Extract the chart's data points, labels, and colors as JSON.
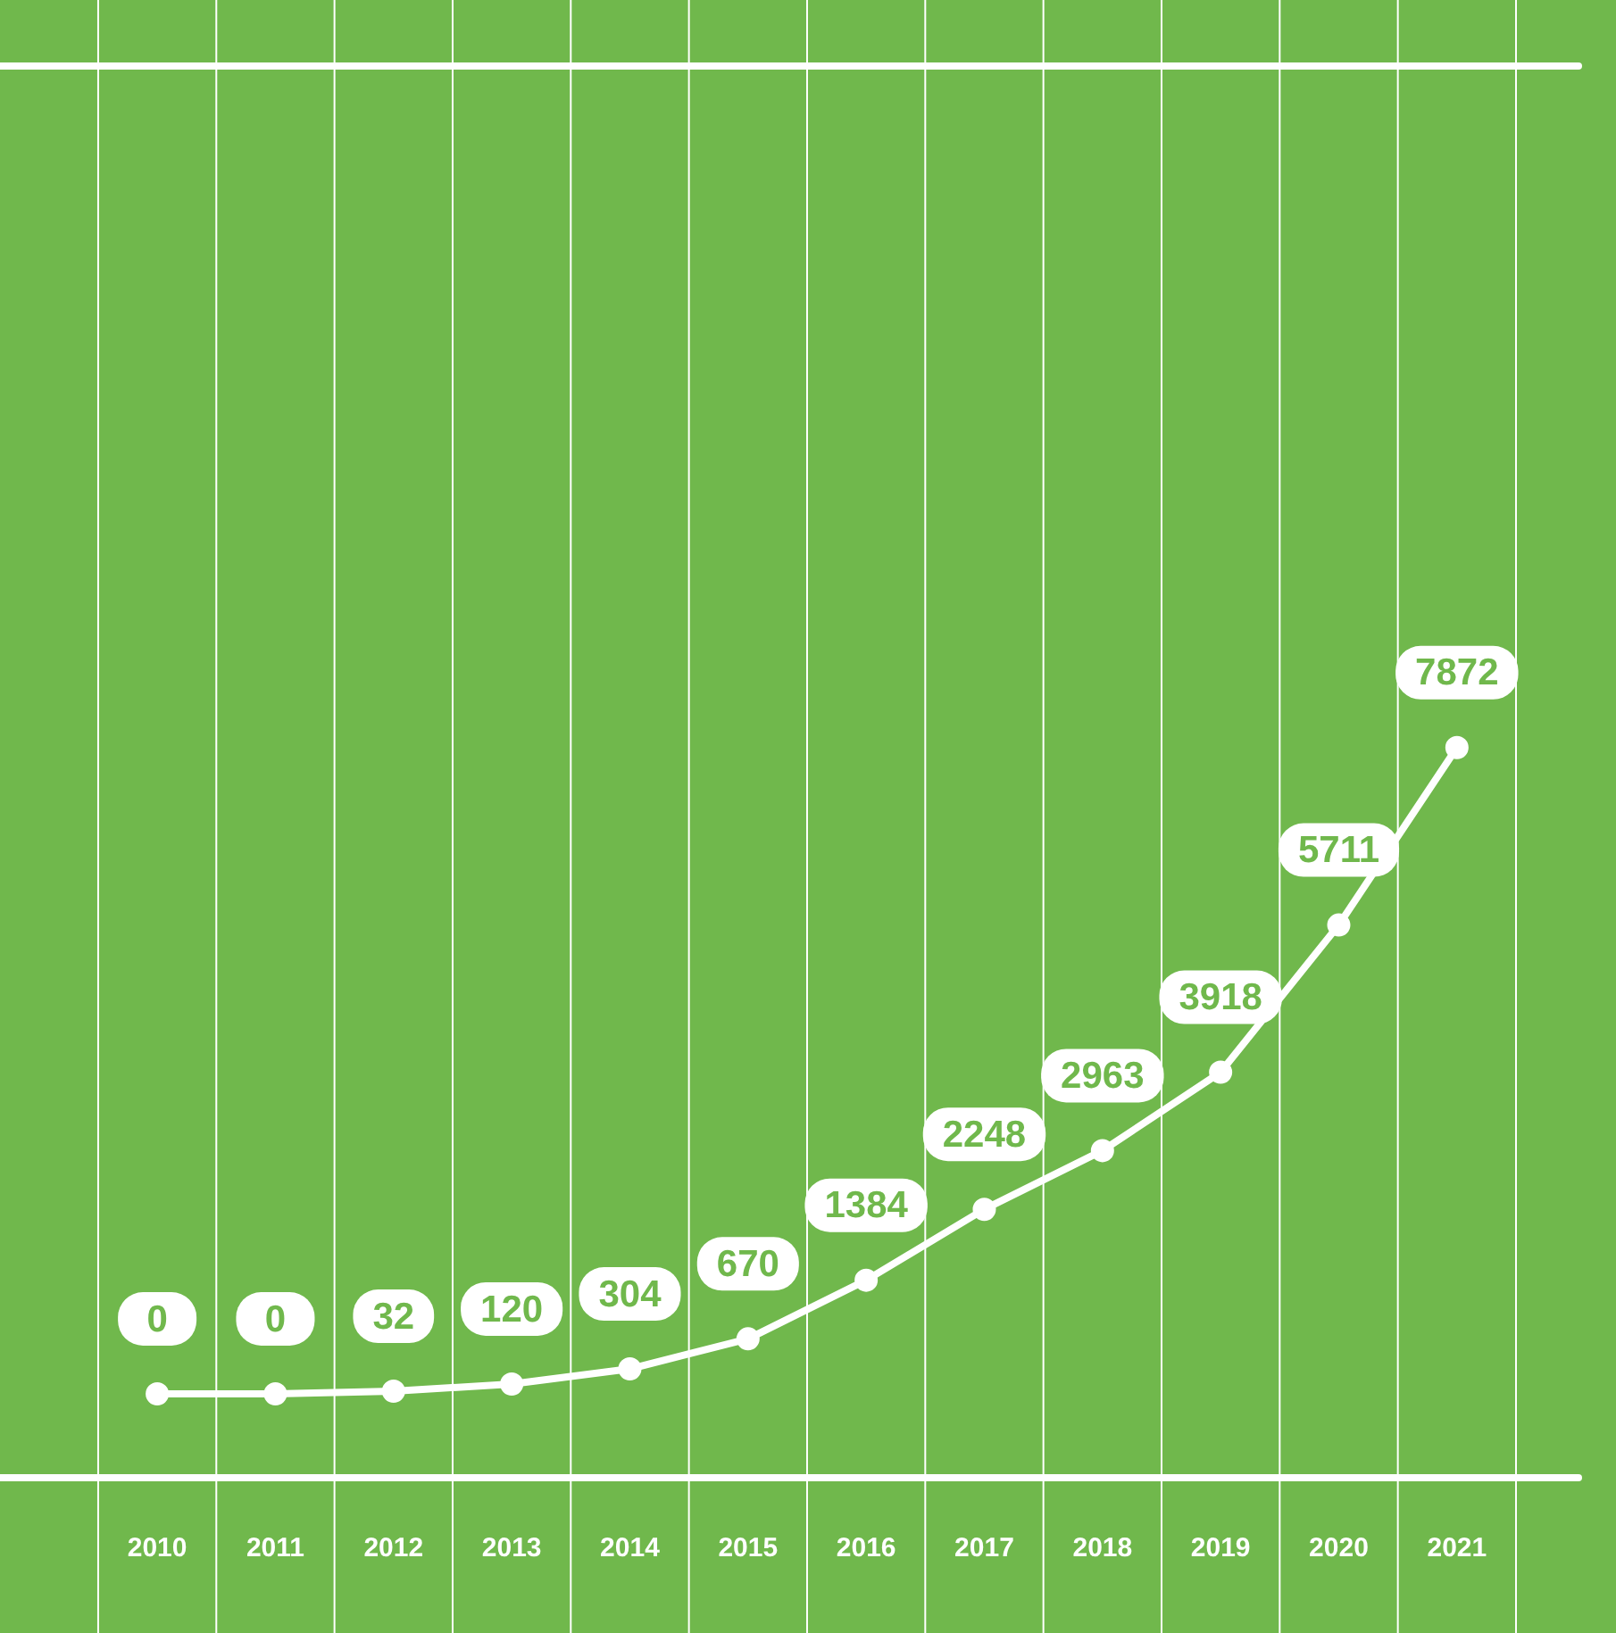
{
  "chart_data": {
    "type": "line",
    "categories": [
      "2010",
      "2011",
      "2012",
      "2013",
      "2014",
      "2015",
      "2016",
      "2017",
      "2018",
      "2019",
      "2020",
      "2021"
    ],
    "values": [
      0,
      0,
      32,
      120,
      304,
      670,
      1384,
      2248,
      2963,
      3918,
      5711,
      7872
    ],
    "color": "#ffffff",
    "data_labels": true,
    "grid": "x",
    "legend": false,
    "marker": "circle",
    "line_style": "solid"
  }
}
